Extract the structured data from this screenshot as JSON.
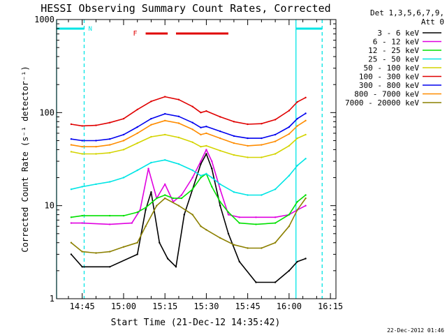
{
  "chart_data": {
    "type": "line",
    "title": "HESSI Observing Summary Count Rates, Corrected",
    "xlabel": "Start Time (21-Dec-12 14:35:42)",
    "ylabel": "Corrected Count Rate (s⁻¹ detector⁻¹)",
    "y_scale": "log",
    "ylim": [
      1,
      1000
    ],
    "xlim": [
      "14:35:42",
      "16:17:00"
    ],
    "x_tick_labels": [
      "14:45",
      "15:00",
      "15:15",
      "15:30",
      "15:45",
      "16:00",
      "16:15"
    ],
    "y_tick_labels": [
      "1",
      "10",
      "100",
      "1000"
    ],
    "legend_position": "right",
    "legend_header": [
      "Det 1,3,5,6,7,9,",
      "Att 0"
    ],
    "footer": "22-Dec-2012 01:46",
    "annotations": {
      "night_label": "N",
      "flare_label": "F",
      "night_intervals": [
        [
          "14:35:42",
          "14:45:42"
        ],
        [
          "16:02:30",
          "16:12:00"
        ]
      ],
      "flare_intervals": [
        [
          "15:08:00",
          "15:16:00"
        ],
        [
          "15:19:00",
          "15:38:00"
        ]
      ],
      "colors": {
        "night": "#00e5e5",
        "flare": "#e00000"
      }
    },
    "series": [
      {
        "name": "3 - 6 keV",
        "color": "#000000",
        "x": [
          "14:41",
          "14:45",
          "14:55",
          "15:05",
          "15:08",
          "15:10",
          "15:13",
          "15:16",
          "15:19",
          "15:22",
          "15:25",
          "15:28",
          "15:30",
          "15:32",
          "15:35",
          "15:38",
          "15:42",
          "15:48",
          "15:55",
          "16:00",
          "16:03",
          "16:06"
        ],
        "y": [
          3,
          2.2,
          2.2,
          3,
          9,
          14,
          4,
          2.7,
          2.2,
          8,
          15,
          28,
          36,
          25,
          10,
          5,
          2.5,
          1.5,
          1.5,
          2,
          2.5,
          2.7
        ]
      },
      {
        "name": "6 - 12 keV",
        "color": "#e000e0",
        "x": [
          "14:41",
          "14:45",
          "14:55",
          "15:03",
          "15:06",
          "15:09",
          "15:12",
          "15:15",
          "15:18",
          "15:21",
          "15:25",
          "15:28",
          "15:30",
          "15:32",
          "15:35",
          "15:38",
          "15:42",
          "15:48",
          "15:55",
          "16:00",
          "16:03",
          "16:06"
        ],
        "y": [
          6.5,
          6.5,
          6.3,
          6.5,
          9,
          25,
          12,
          17,
          11,
          13,
          20,
          30,
          40,
          30,
          15,
          8,
          7.5,
          7.5,
          7.5,
          8,
          9,
          10
        ]
      },
      {
        "name": "12 - 25 keV",
        "color": "#00e000",
        "x": [
          "14:41",
          "14:45",
          "14:55",
          "15:00",
          "15:05",
          "15:08",
          "15:12",
          "15:15",
          "15:18",
          "15:21",
          "15:25",
          "15:28",
          "15:30",
          "15:32",
          "15:35",
          "15:38",
          "15:42",
          "15:48",
          "15:55",
          "16:00",
          "16:03",
          "16:06"
        ],
        "y": [
          7.5,
          7.8,
          7.8,
          7.8,
          8.5,
          9.5,
          12,
          13,
          12,
          12,
          15,
          20,
          22,
          16,
          11,
          8.5,
          6.5,
          6.3,
          6.5,
          8,
          11,
          13
        ]
      },
      {
        "name": "25 - 50 keV",
        "color": "#00e5e5",
        "x": [
          "14:41",
          "14:45",
          "14:50",
          "14:55",
          "15:00",
          "15:05",
          "15:10",
          "15:15",
          "15:20",
          "15:25",
          "15:28",
          "15:30",
          "15:32",
          "15:35",
          "15:40",
          "15:45",
          "15:50",
          "15:55",
          "16:00",
          "16:03",
          "16:06"
        ],
        "y": [
          15,
          16,
          17,
          18,
          20,
          24,
          29,
          31,
          28,
          24,
          21,
          22,
          20,
          17,
          14,
          13,
          13,
          15,
          21,
          27,
          32
        ]
      },
      {
        "name": "50 - 100 keV",
        "color": "#d4d400",
        "x": [
          "14:41",
          "14:45",
          "14:50",
          "14:55",
          "15:00",
          "15:05",
          "15:10",
          "15:15",
          "15:20",
          "15:25",
          "15:28",
          "15:30",
          "15:35",
          "15:40",
          "15:45",
          "15:50",
          "15:55",
          "16:00",
          "16:03",
          "16:06"
        ],
        "y": [
          38,
          36,
          36,
          37,
          40,
          47,
          55,
          58,
          54,
          48,
          43,
          44,
          39,
          35,
          33,
          33,
          36,
          44,
          53,
          58
        ]
      },
      {
        "name": "100 - 300 keV",
        "color": "#e00000",
        "x": [
          "14:41",
          "14:45",
          "14:50",
          "14:55",
          "15:00",
          "15:05",
          "15:10",
          "15:15",
          "15:20",
          "15:25",
          "15:28",
          "15:30",
          "15:35",
          "15:40",
          "15:45",
          "15:50",
          "15:55",
          "16:00",
          "16:03",
          "16:06"
        ],
        "y": [
          75,
          72,
          73,
          78,
          86,
          108,
          132,
          148,
          138,
          116,
          100,
          104,
          90,
          80,
          75,
          76,
          84,
          105,
          130,
          145
        ]
      },
      {
        "name": "300 - 800 keV",
        "color": "#0000ee",
        "x": [
          "14:41",
          "14:45",
          "14:50",
          "14:55",
          "15:00",
          "15:05",
          "15:10",
          "15:15",
          "15:20",
          "15:25",
          "15:28",
          "15:30",
          "15:35",
          "15:40",
          "15:45",
          "15:50",
          "15:55",
          "16:00",
          "16:03",
          "16:06"
        ],
        "y": [
          52,
          50,
          50,
          52,
          58,
          70,
          86,
          97,
          91,
          78,
          69,
          71,
          63,
          56,
          53,
          53,
          58,
          70,
          86,
          98
        ]
      },
      {
        "name": "800 - 7000 keV",
        "color": "#ff8c00",
        "x": [
          "14:41",
          "14:45",
          "14:50",
          "14:55",
          "15:00",
          "15:05",
          "15:10",
          "15:15",
          "15:20",
          "15:25",
          "15:28",
          "15:30",
          "15:35",
          "15:40",
          "15:45",
          "15:50",
          "15:55",
          "16:00",
          "16:03",
          "16:06"
        ],
        "y": [
          45,
          43,
          43,
          45,
          50,
          60,
          74,
          82,
          77,
          66,
          58,
          60,
          53,
          47,
          44,
          45,
          49,
          59,
          72,
          82
        ]
      },
      {
        "name": "7000 - 20000 keV",
        "color": "#8c8000",
        "x": [
          "14:41",
          "14:45",
          "14:50",
          "14:55",
          "15:00",
          "15:05",
          "15:08",
          "15:12",
          "15:15",
          "15:20",
          "15:25",
          "15:28",
          "15:30",
          "15:35",
          "15:40",
          "15:45",
          "15:50",
          "15:55",
          "16:00",
          "16:03",
          "16:06"
        ],
        "y": [
          4,
          3.2,
          3.1,
          3.2,
          3.6,
          4,
          6,
          10,
          12,
          10,
          8,
          6,
          5.5,
          4.5,
          3.8,
          3.5,
          3.5,
          4,
          6,
          9,
          12
        ]
      }
    ]
  }
}
